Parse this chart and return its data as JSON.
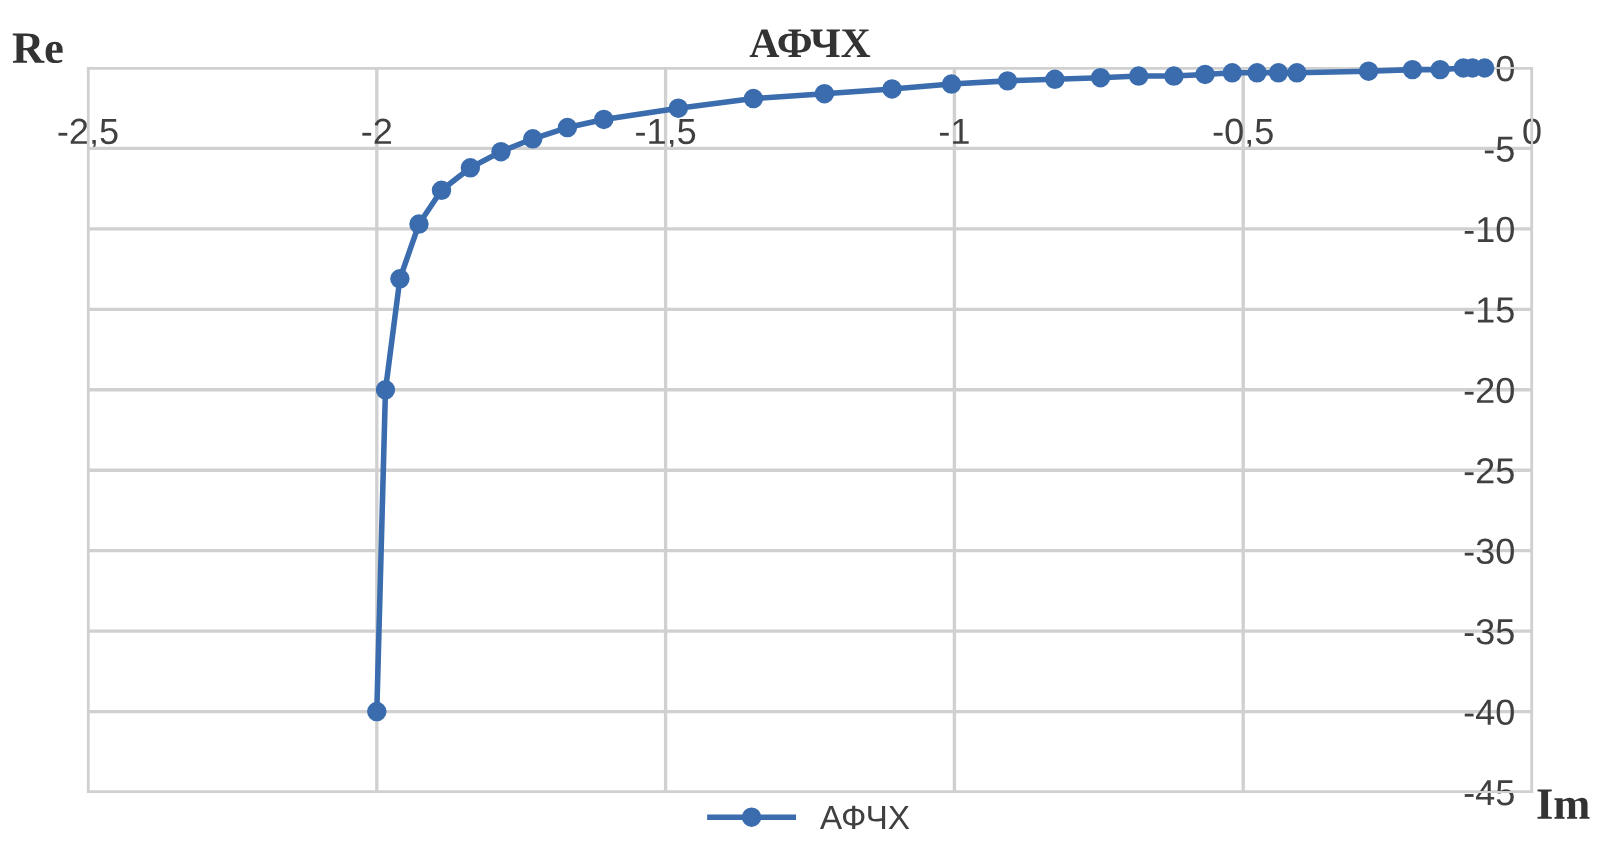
{
  "chart_data": {
    "type": "line",
    "title": "АФЧХ",
    "xlabel": "Im",
    "ylabel": "Re",
    "xlim": [
      -2.5,
      0
    ],
    "xticks": [
      {
        "value": -2.5,
        "label": "-2,5"
      },
      -2,
      {
        "value": -1.5,
        "label": "-1,5"
      },
      -1,
      {
        "value": -0.5,
        "label": "-0,5"
      },
      0
    ],
    "ylim": [
      -45,
      0
    ],
    "yticks": [
      -45,
      -40,
      -35,
      -30,
      -25,
      -20,
      -15,
      -10,
      -5,
      0
    ],
    "grid": true,
    "legend": "bottom",
    "marker": "circle",
    "line_style": "solid",
    "series": [
      {
        "name": "АФЧХ",
        "color": "#3a6cae",
        "x": [
          -2.0,
          -1.985,
          -1.96,
          -1.927,
          -1.888,
          -1.838,
          -1.785,
          -1.73,
          -1.67,
          -1.607,
          -1.478,
          -1.348,
          -1.225,
          -1.108,
          -1.005,
          -0.908,
          -0.826,
          -0.747,
          -0.681,
          -0.62,
          -0.566,
          -0.519,
          -0.476,
          -0.439,
          -0.407,
          -0.283,
          -0.207,
          -0.159,
          -0.119,
          -0.103,
          -0.082
        ],
        "values": [
          -40,
          -20,
          -13.1,
          -9.7,
          -7.6,
          -6.2,
          -5.2,
          -4.4,
          -3.7,
          -3.2,
          -2.5,
          -1.9,
          -1.6,
          -1.3,
          -1.0,
          -0.8,
          -0.7,
          -0.6,
          -0.5,
          -0.5,
          -0.4,
          -0.3,
          -0.3,
          -0.3,
          -0.3,
          -0.2,
          -0.1,
          -0.1,
          0.0,
          0.0,
          0.0
        ]
      }
    ]
  }
}
